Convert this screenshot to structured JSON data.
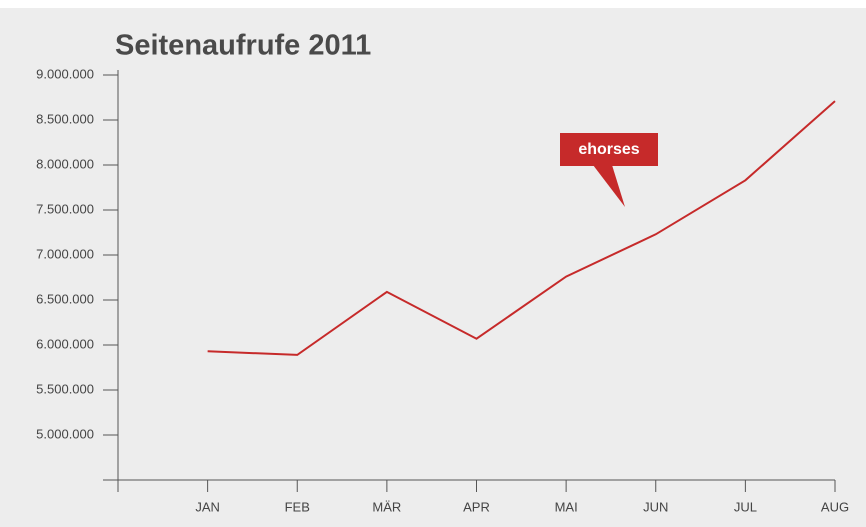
{
  "chart_data": {
    "type": "line",
    "title": "Seitenaufrufe 2011",
    "categories": [
      "JAN",
      "FEB",
      "MÄR",
      "APR",
      "MAI",
      "JUN",
      "JUL",
      "AUG"
    ],
    "series": [
      {
        "name": "ehorses",
        "color": "#c62a2a",
        "values": [
          5930000,
          5890000,
          6590000,
          6070000,
          6760000,
          7230000,
          7830000,
          8710000
        ]
      }
    ],
    "ylim": [
      4500000,
      9000000
    ],
    "yticks": [
      {
        "value": 5000000,
        "label": "5.000.000"
      },
      {
        "value": 5500000,
        "label": "5.500.000"
      },
      {
        "value": 6000000,
        "label": "6.000.000"
      },
      {
        "value": 6500000,
        "label": "6.500.000"
      },
      {
        "value": 7000000,
        "label": "7.000.000"
      },
      {
        "value": 7500000,
        "label": "7.500.000"
      },
      {
        "value": 8000000,
        "label": "8.000.000"
      },
      {
        "value": 8500000,
        "label": "8.500.000"
      },
      {
        "value": 9000000,
        "label": "9.000.000"
      }
    ],
    "grid": false
  }
}
